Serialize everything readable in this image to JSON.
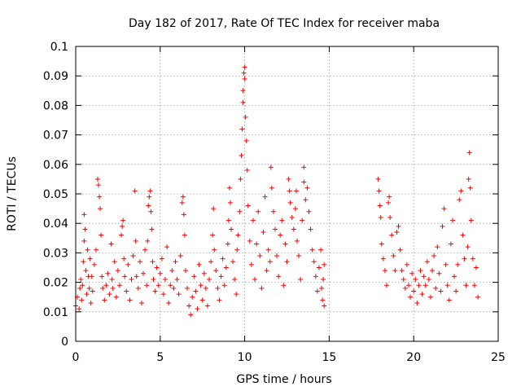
{
  "chart_data": {
    "type": "scatter",
    "title": "Day 182 of 2017, Rate Of TEC Index for receiver maba",
    "xlabel": "GPS time / hours",
    "ylabel": "ROTI / TECUs",
    "xlim": [
      0,
      25
    ],
    "ylim": [
      0,
      0.1
    ],
    "x_ticks": [
      "0",
      "5",
      "10",
      "15",
      "20",
      "25"
    ],
    "y_ticks": [
      "0",
      "0.01",
      "0.02",
      "0.03",
      "0.04",
      "0.05",
      "0.06",
      "0.07",
      "0.08",
      "0.09",
      "0.1"
    ],
    "grid": true,
    "marker": "plus",
    "color": "#ff0000",
    "series": [
      {
        "points": [
          [
            0.0,
            0.012
          ],
          [
            0.1,
            0.015
          ],
          [
            0.2,
            0.011
          ],
          [
            0.25,
            0.018
          ],
          [
            0.3,
            0.021
          ],
          [
            0.35,
            0.014
          ],
          [
            0.4,
            0.019
          ],
          [
            0.45,
            0.027
          ],
          [
            0.5,
            0.034
          ],
          [
            0.5,
            0.043
          ],
          [
            0.55,
            0.038
          ],
          [
            0.6,
            0.024
          ],
          [
            0.65,
            0.016
          ],
          [
            0.7,
            0.031
          ],
          [
            0.75,
            0.022
          ],
          [
            0.8,
            0.018
          ],
          [
            0.85,
            0.028
          ],
          [
            0.9,
            0.013
          ],
          [
            0.95,
            0.022
          ],
          [
            1.0,
            0.017
          ],
          [
            1.1,
            0.026
          ],
          [
            1.2,
            0.031
          ],
          [
            1.3,
            0.055
          ],
          [
            1.35,
            0.053
          ],
          [
            1.4,
            0.049
          ],
          [
            1.45,
            0.045
          ],
          [
            1.5,
            0.036
          ],
          [
            1.55,
            0.022
          ],
          [
            1.6,
            0.018
          ],
          [
            1.7,
            0.014
          ],
          [
            1.8,
            0.019
          ],
          [
            1.9,
            0.023
          ],
          [
            2.0,
            0.016
          ],
          [
            2.1,
            0.033
          ],
          [
            2.15,
            0.021
          ],
          [
            2.2,
            0.018
          ],
          [
            2.3,
            0.027
          ],
          [
            2.4,
            0.015
          ],
          [
            2.5,
            0.024
          ],
          [
            2.6,
            0.019
          ],
          [
            2.7,
            0.036
          ],
          [
            2.75,
            0.039
          ],
          [
            2.8,
            0.041
          ],
          [
            2.85,
            0.028
          ],
          [
            2.9,
            0.022
          ],
          [
            3.0,
            0.017
          ],
          [
            3.1,
            0.026
          ],
          [
            3.2,
            0.014
          ],
          [
            3.3,
            0.021
          ],
          [
            3.4,
            0.029
          ],
          [
            3.5,
            0.051
          ],
          [
            3.55,
            0.034
          ],
          [
            3.6,
            0.022
          ],
          [
            3.7,
            0.018
          ],
          [
            3.8,
            0.027
          ],
          [
            3.9,
            0.013
          ],
          [
            4.0,
            0.023
          ],
          [
            4.1,
            0.031
          ],
          [
            4.2,
            0.019
          ],
          [
            4.25,
            0.034
          ],
          [
            4.3,
            0.046
          ],
          [
            4.35,
            0.049
          ],
          [
            4.4,
            0.051
          ],
          [
            4.45,
            0.044
          ],
          [
            4.5,
            0.038
          ],
          [
            4.55,
            0.027
          ],
          [
            4.6,
            0.021
          ],
          [
            4.7,
            0.017
          ],
          [
            4.8,
            0.025
          ],
          [
            4.9,
            0.019
          ],
          [
            5.0,
            0.023
          ],
          [
            5.1,
            0.028
          ],
          [
            5.2,
            0.016
          ],
          [
            5.3,
            0.021
          ],
          [
            5.4,
            0.032
          ],
          [
            5.5,
            0.013
          ],
          [
            5.6,
            0.019
          ],
          [
            5.7,
            0.024
          ],
          [
            5.8,
            0.018
          ],
          [
            5.9,
            0.027
          ],
          [
            6.0,
            0.021
          ],
          [
            6.1,
            0.016
          ],
          [
            6.2,
            0.029
          ],
          [
            6.3,
            0.047
          ],
          [
            6.35,
            0.049
          ],
          [
            6.4,
            0.043
          ],
          [
            6.45,
            0.036
          ],
          [
            6.5,
            0.024
          ],
          [
            6.6,
            0.018
          ],
          [
            6.7,
            0.012
          ],
          [
            6.8,
            0.009
          ],
          [
            6.9,
            0.015
          ],
          [
            7.0,
            0.022
          ],
          [
            7.1,
            0.017
          ],
          [
            7.2,
            0.011
          ],
          [
            7.3,
            0.026
          ],
          [
            7.4,
            0.019
          ],
          [
            7.5,
            0.014
          ],
          [
            7.6,
            0.023
          ],
          [
            7.7,
            0.018
          ],
          [
            7.8,
            0.012
          ],
          [
            7.9,
            0.021
          ],
          [
            8.0,
            0.027
          ],
          [
            8.1,
            0.036
          ],
          [
            8.15,
            0.045
          ],
          [
            8.2,
            0.031
          ],
          [
            8.3,
            0.024
          ],
          [
            8.4,
            0.018
          ],
          [
            8.5,
            0.014
          ],
          [
            8.6,
            0.022
          ],
          [
            8.7,
            0.028
          ],
          [
            8.8,
            0.019
          ],
          [
            8.9,
            0.025
          ],
          [
            9.0,
            0.033
          ],
          [
            9.05,
            0.041
          ],
          [
            9.1,
            0.052
          ],
          [
            9.15,
            0.047
          ],
          [
            9.2,
            0.038
          ],
          [
            9.3,
            0.027
          ],
          [
            9.4,
            0.021
          ],
          [
            9.5,
            0.016
          ],
          [
            9.55,
            0.031
          ],
          [
            9.6,
            0.036
          ],
          [
            9.7,
            0.044
          ],
          [
            9.75,
            0.055
          ],
          [
            9.8,
            0.063
          ],
          [
            9.85,
            0.072
          ],
          [
            9.9,
            0.081
          ],
          [
            9.9,
            0.085
          ],
          [
            9.95,
            0.091
          ],
          [
            10.0,
            0.093
          ],
          [
            10.0,
            0.089
          ],
          [
            10.05,
            0.076
          ],
          [
            10.1,
            0.068
          ],
          [
            10.15,
            0.058
          ],
          [
            10.2,
            0.046
          ],
          [
            10.3,
            0.034
          ],
          [
            10.4,
            0.026
          ],
          [
            10.5,
            0.041
          ],
          [
            10.6,
            0.021
          ],
          [
            10.7,
            0.033
          ],
          [
            10.8,
            0.044
          ],
          [
            10.9,
            0.029
          ],
          [
            11.0,
            0.018
          ],
          [
            11.1,
            0.037
          ],
          [
            11.2,
            0.049
          ],
          [
            11.3,
            0.024
          ],
          [
            11.4,
            0.031
          ],
          [
            11.5,
            0.027
          ],
          [
            11.55,
            0.059
          ],
          [
            11.6,
            0.052
          ],
          [
            11.7,
            0.044
          ],
          [
            11.8,
            0.038
          ],
          [
            11.9,
            0.029
          ],
          [
            12.0,
            0.022
          ],
          [
            12.1,
            0.036
          ],
          [
            12.2,
            0.041
          ],
          [
            12.3,
            0.019
          ],
          [
            12.4,
            0.033
          ],
          [
            12.5,
            0.027
          ],
          [
            12.6,
            0.055
          ],
          [
            12.65,
            0.051
          ],
          [
            12.7,
            0.047
          ],
          [
            12.8,
            0.042
          ],
          [
            12.9,
            0.038
          ],
          [
            13.0,
            0.045
          ],
          [
            13.05,
            0.051
          ],
          [
            13.1,
            0.034
          ],
          [
            13.2,
            0.029
          ],
          [
            13.3,
            0.021
          ],
          [
            13.4,
            0.041
          ],
          [
            13.5,
            0.059
          ],
          [
            13.5,
            0.054
          ],
          [
            13.6,
            0.048
          ],
          [
            13.7,
            0.052
          ],
          [
            13.8,
            0.044
          ],
          [
            13.9,
            0.038
          ],
          [
            14.0,
            0.031
          ],
          [
            14.1,
            0.027
          ],
          [
            14.2,
            0.022
          ],
          [
            14.3,
            0.017
          ],
          [
            14.4,
            0.025
          ],
          [
            14.5,
            0.031
          ],
          [
            14.55,
            0.018
          ],
          [
            14.6,
            0.014
          ],
          [
            14.65,
            0.021
          ],
          [
            14.7,
            0.026
          ],
          [
            14.7,
            0.012
          ],
          [
            17.9,
            0.055
          ],
          [
            17.95,
            0.051
          ],
          [
            18.0,
            0.046
          ],
          [
            18.05,
            0.042
          ],
          [
            18.1,
            0.033
          ],
          [
            18.2,
            0.028
          ],
          [
            18.3,
            0.024
          ],
          [
            18.4,
            0.019
          ],
          [
            18.5,
            0.047
          ],
          [
            18.55,
            0.049
          ],
          [
            18.6,
            0.042
          ],
          [
            18.7,
            0.036
          ],
          [
            18.8,
            0.029
          ],
          [
            18.9,
            0.024
          ],
          [
            19.0,
            0.037
          ],
          [
            19.1,
            0.039
          ],
          [
            19.2,
            0.031
          ],
          [
            19.3,
            0.024
          ],
          [
            19.4,
            0.021
          ],
          [
            19.5,
            0.018
          ],
          [
            19.6,
            0.026
          ],
          [
            19.7,
            0.019
          ],
          [
            19.8,
            0.015
          ],
          [
            19.9,
            0.023
          ],
          [
            20.0,
            0.017
          ],
          [
            20.1,
            0.021
          ],
          [
            20.2,
            0.013
          ],
          [
            20.3,
            0.019
          ],
          [
            20.4,
            0.024
          ],
          [
            20.5,
            0.016
          ],
          [
            20.6,
            0.022
          ],
          [
            20.7,
            0.019
          ],
          [
            20.8,
            0.027
          ],
          [
            20.9,
            0.021
          ],
          [
            21.0,
            0.015
          ],
          [
            21.1,
            0.024
          ],
          [
            21.2,
            0.029
          ],
          [
            21.3,
            0.018
          ],
          [
            21.4,
            0.032
          ],
          [
            21.5,
            0.023
          ],
          [
            21.6,
            0.017
          ],
          [
            21.7,
            0.039
          ],
          [
            21.8,
            0.045
          ],
          [
            21.9,
            0.026
          ],
          [
            22.0,
            0.019
          ],
          [
            22.1,
            0.014
          ],
          [
            22.2,
            0.033
          ],
          [
            22.3,
            0.041
          ],
          [
            22.4,
            0.022
          ],
          [
            22.5,
            0.017
          ],
          [
            22.6,
            0.026
          ],
          [
            22.7,
            0.048
          ],
          [
            22.8,
            0.051
          ],
          [
            22.9,
            0.036
          ],
          [
            23.0,
            0.028
          ],
          [
            23.1,
            0.019
          ],
          [
            23.2,
            0.032
          ],
          [
            23.25,
            0.055
          ],
          [
            23.3,
            0.064
          ],
          [
            23.35,
            0.052
          ],
          [
            23.4,
            0.041
          ],
          [
            23.5,
            0.028
          ],
          [
            23.6,
            0.019
          ],
          [
            23.7,
            0.025
          ],
          [
            23.8,
            0.015
          ]
        ]
      }
    ]
  }
}
